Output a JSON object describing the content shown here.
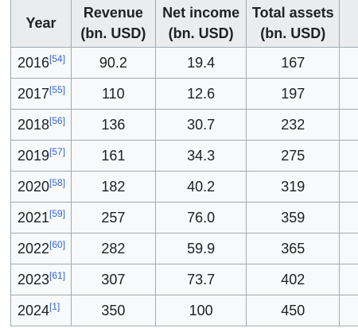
{
  "table": {
    "headers": [
      {
        "line1": "Year",
        "line2": ""
      },
      {
        "line1": "Revenue",
        "line2": "(bn. USD)"
      },
      {
        "line1": "Net income",
        "line2": "(bn. USD)"
      },
      {
        "line1": "Total assets",
        "line2": "(bn. USD)"
      }
    ],
    "rows": [
      {
        "year": "2016",
        "ref": "[54]",
        "revenue": "90.2",
        "net_income": "19.4",
        "total_assets": "167"
      },
      {
        "year": "2017",
        "ref": "[55]",
        "revenue": "110",
        "net_income": "12.6",
        "total_assets": "197"
      },
      {
        "year": "2018",
        "ref": "[56]",
        "revenue": "136",
        "net_income": "30.7",
        "total_assets": "232"
      },
      {
        "year": "2019",
        "ref": "[57]",
        "revenue": "161",
        "net_income": "34.3",
        "total_assets": "275"
      },
      {
        "year": "2020",
        "ref": "[58]",
        "revenue": "182",
        "net_income": "40.2",
        "total_assets": "319"
      },
      {
        "year": "2021",
        "ref": "[59]",
        "revenue": "257",
        "net_income": "76.0",
        "total_assets": "359"
      },
      {
        "year": "2022",
        "ref": "[60]",
        "revenue": "282",
        "net_income": "59.9",
        "total_assets": "365"
      },
      {
        "year": "2023",
        "ref": "[61]",
        "revenue": "307",
        "net_income": "73.7",
        "total_assets": "402"
      },
      {
        "year": "2024",
        "ref": "[1]",
        "revenue": "350",
        "net_income": "100",
        "total_assets": "450"
      }
    ]
  },
  "colors": {
    "header_bg": "#eaecf0",
    "cell_bg": "#f8f9fa",
    "border": "#a2a9b1",
    "link": "#3366cc"
  }
}
